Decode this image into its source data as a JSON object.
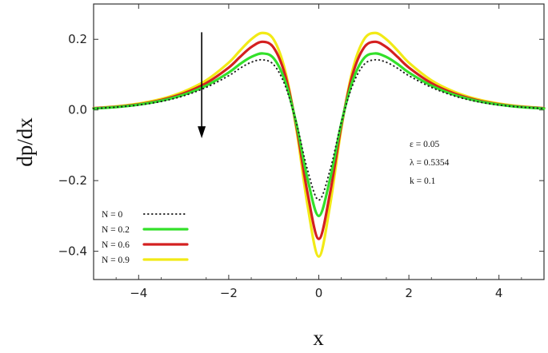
{
  "chart_data": {
    "type": "line",
    "xlabel": "x",
    "ylabel": "dp/dx",
    "xlim": [
      -5,
      5
    ],
    "ylim": [
      -0.48,
      0.3
    ],
    "xticks": [
      -4,
      -2,
      0,
      2,
      4
    ],
    "xtick_labels": [
      "−4",
      "−2",
      "0",
      "2",
      "4"
    ],
    "yticks": [
      -0.4,
      -0.2,
      0.0,
      0.2
    ],
    "ytick_labels": [
      "−0.4",
      "−0.2",
      "0.0",
      "0.2"
    ],
    "grid": false,
    "legend_position": "bottom-left",
    "annotations": [
      "ε = 0.05",
      "λ = 0.5354",
      "k = 0.1"
    ],
    "arrow": "down, at x ≈ -2.6, from y ≈ 0.22 to y ≈ -0.08",
    "x": [
      -5,
      -4.5,
      -4,
      -3.5,
      -3,
      -2.5,
      -2,
      -1.75,
      -1.5,
      -1.25,
      -1,
      -0.75,
      -0.5,
      -0.25,
      0,
      0.25,
      0.5,
      0.75,
      1,
      1.25,
      1.5,
      1.75,
      2,
      2.5,
      3,
      3.5,
      4,
      4.5,
      5
    ],
    "series": [
      {
        "name": "N = 0",
        "color": "#222222",
        "style": "dotted",
        "values": [
          0.004,
          0.008,
          0.014,
          0.024,
          0.04,
          0.064,
          0.097,
          0.118,
          0.135,
          0.142,
          0.128,
          0.07,
          -0.035,
          -0.17,
          -0.255,
          -0.17,
          -0.035,
          0.07,
          0.128,
          0.142,
          0.135,
          0.118,
          0.097,
          0.064,
          0.04,
          0.024,
          0.014,
          0.008,
          0.004
        ]
      },
      {
        "name": "N = 0.2",
        "color": "#33e02a",
        "style": "solid",
        "values": [
          0.004,
          0.008,
          0.015,
          0.026,
          0.043,
          0.069,
          0.106,
          0.13,
          0.15,
          0.16,
          0.146,
          0.082,
          -0.038,
          -0.195,
          -0.3,
          -0.195,
          -0.038,
          0.082,
          0.146,
          0.16,
          0.15,
          0.13,
          0.106,
          0.069,
          0.043,
          0.026,
          0.015,
          0.008,
          0.004
        ]
      },
      {
        "name": "N = 0.6",
        "color": "#d42020",
        "style": "solid",
        "values": [
          0.005,
          0.009,
          0.016,
          0.028,
          0.047,
          0.076,
          0.12,
          0.15,
          0.178,
          0.193,
          0.176,
          0.1,
          -0.045,
          -0.235,
          -0.365,
          -0.235,
          -0.045,
          0.1,
          0.176,
          0.193,
          0.178,
          0.15,
          0.12,
          0.076,
          0.047,
          0.028,
          0.016,
          0.009,
          0.005
        ]
      },
      {
        "name": "N = 0.9",
        "color": "#f2ea16",
        "style": "solid",
        "values": [
          0.005,
          0.01,
          0.018,
          0.031,
          0.052,
          0.084,
          0.134,
          0.168,
          0.2,
          0.218,
          0.199,
          0.113,
          -0.052,
          -0.27,
          -0.415,
          -0.27,
          -0.052,
          0.113,
          0.199,
          0.218,
          0.2,
          0.168,
          0.134,
          0.084,
          0.052,
          0.031,
          0.018,
          0.01,
          0.005
        ]
      }
    ]
  }
}
